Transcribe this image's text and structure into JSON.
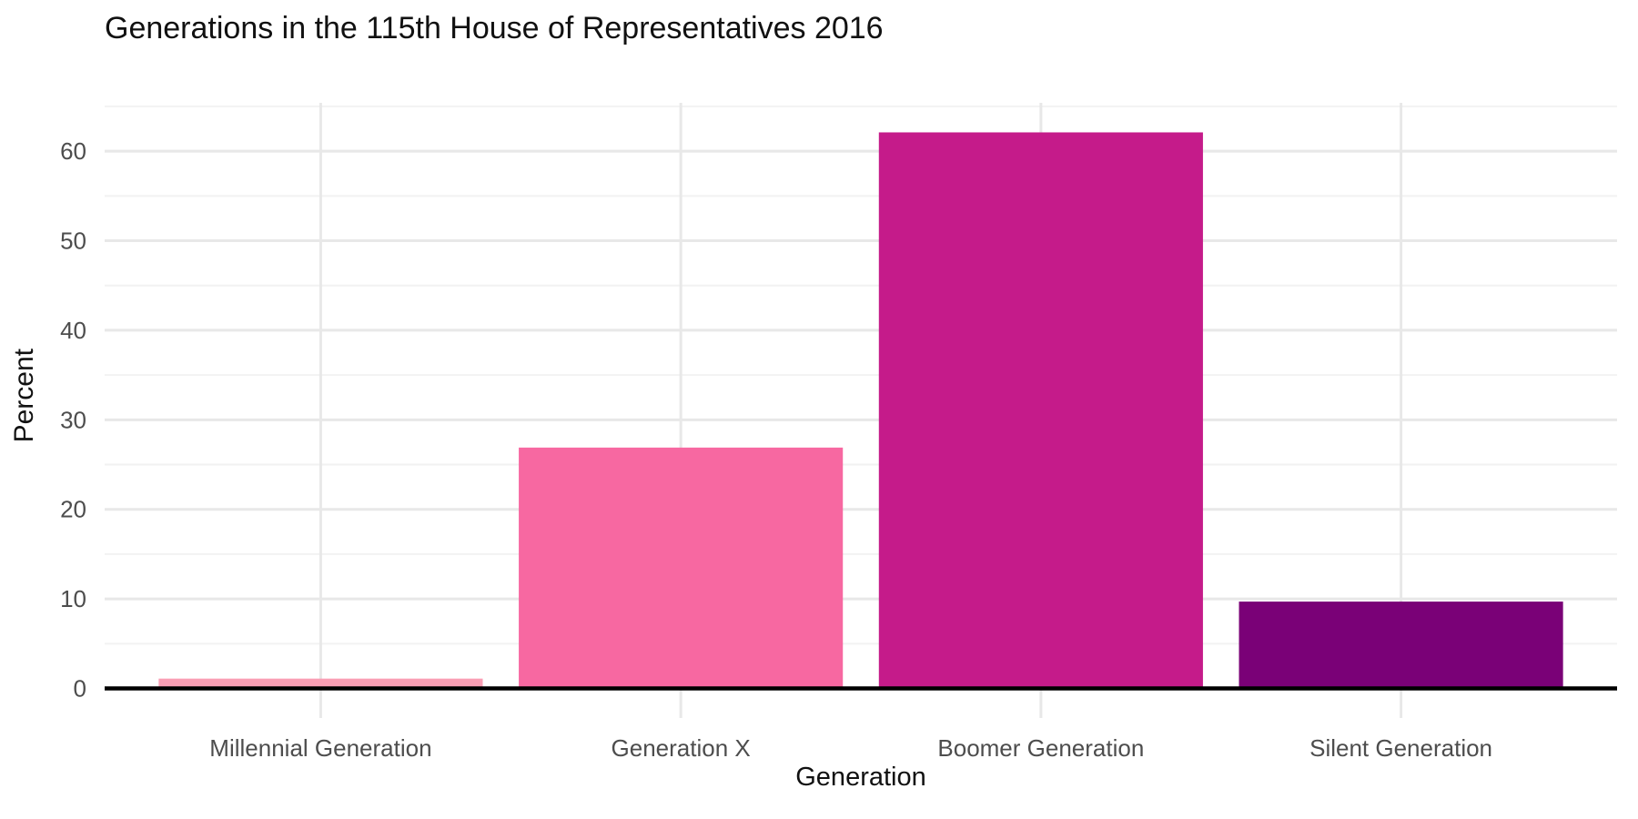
{
  "chart_data": {
    "type": "bar",
    "title": "Generations in the 115th House of Representatives 2016",
    "xlabel": "Generation",
    "ylabel": "Percent",
    "categories": [
      "Millennial Generation",
      "Generation X",
      "Boomer Generation",
      "Silent Generation"
    ],
    "values": [
      1.1,
      26.9,
      62.1,
      9.7
    ],
    "bar_colors": [
      "#FA9FB5",
      "#F768A1",
      "#C51B8A",
      "#7A0177"
    ],
    "ylim": [
      -3.3,
      65.4
    ],
    "yticks": [
      0,
      10,
      20,
      30,
      40,
      50,
      60
    ],
    "yticks_minor": [
      5,
      15,
      25,
      35,
      45,
      55,
      65
    ],
    "grid": "on",
    "legend": "none",
    "background_color": "#ffffff",
    "grid_major_color": "#e8e8e8",
    "grid_minor_color": "#f2f2f2",
    "axis_line_color": "#000000",
    "tick_label_color": "#4d4d4d",
    "title_color": "#111111"
  }
}
